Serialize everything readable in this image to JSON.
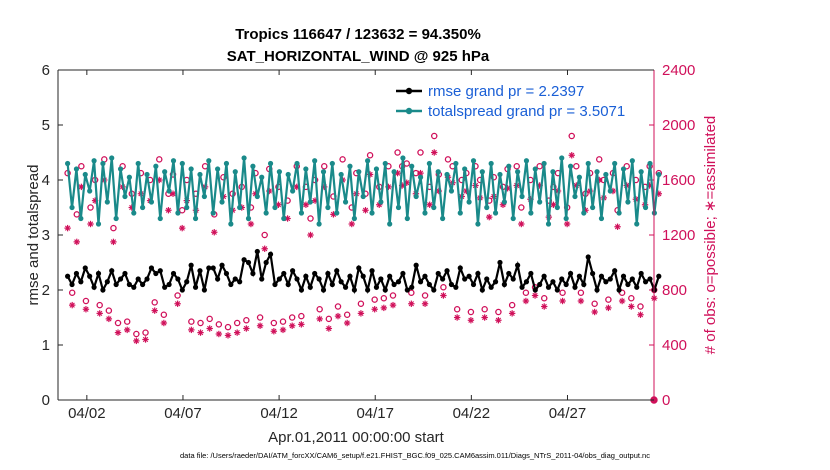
{
  "chart_data": {
    "type": "line",
    "title_line1": "Tropics 116647 / 123632 = 94.350%",
    "title_line2": "SAT_HORIZONTAL_WIND @ 925 hPa",
    "xlabel": "Apr.01,2011 00:00:00 start",
    "ylabel_left": "rmse and totalspread",
    "ylabel_right": "# of obs: o=possible; ∗=assimilated",
    "footnote": "data file: /Users/raeder/DAI/ATM_forcXX/CAM6_setup/f.e21.FHIST_BGC.f09_025.CAM6assim.011/Diags_NTrS_2011-04/obs_diag_output.nc",
    "xlim": [
      0.5,
      31.5
    ],
    "x_ticks": [
      2,
      7,
      12,
      17,
      22,
      27
    ],
    "x_tick_labels": [
      "04/02",
      "04/07",
      "04/12",
      "04/17",
      "04/22",
      "04/27"
    ],
    "ylim_left": [
      0,
      6
    ],
    "y_ticks_left": [
      0,
      1,
      2,
      3,
      4,
      5,
      6
    ],
    "ylim_right": [
      0,
      2400
    ],
    "y_ticks_right": [
      0,
      400,
      800,
      1200,
      1600,
      2000,
      2400
    ],
    "colors": {
      "rmse": "#000000",
      "spread": "#1a8a8a",
      "obs": "#d0105a",
      "legend_text": "#1a5fd6",
      "axis": "#262626"
    },
    "legend": {
      "rmse_label": "rmse grand pr = 2.2397",
      "spread_label": "totalspread grand pr = 3.5071"
    },
    "series": [
      {
        "name": "rmse",
        "axis": "left",
        "values": [
          2.25,
          2.1,
          2.3,
          2.15,
          2.4,
          2.25,
          2.05,
          2.3,
          2.0,
          2.15,
          2.35,
          2.1,
          2.2,
          2.3,
          2.1,
          2.05,
          2.2,
          2.1,
          2.2,
          2.4,
          2.3,
          2.35,
          2.05,
          2.1,
          2.3,
          2.2,
          2.0,
          2.15,
          2.45,
          2.05,
          2.35,
          2.0,
          2.4,
          2.4,
          2.2,
          2.45,
          2.3,
          2.1,
          2.2,
          2.15,
          2.55,
          2.5,
          2.3,
          2.7,
          2.2,
          2.5,
          2.65,
          2.1,
          2.2,
          2.3,
          2.1,
          2.35,
          2.2,
          2.0,
          2.25,
          2.05,
          2.3,
          2.2,
          2.0,
          2.3,
          2.1,
          2.35,
          2.15,
          2.05,
          2.25,
          2.0,
          2.4,
          2.25,
          2.0,
          2.35,
          2.05,
          2.2,
          2.0,
          2.25,
          2.1,
          2.15,
          2.3,
          2.0,
          2.05,
          2.45,
          2.15,
          2.25,
          2.1,
          2.0,
          2.3,
          2.2,
          2.35,
          2.1,
          2.05,
          2.4,
          2.2,
          2.25,
          2.1,
          2.3,
          2.0,
          2.2,
          2.05,
          2.15,
          2.5,
          2.1,
          2.3,
          2.2,
          2.45,
          2.05,
          2.15,
          2.3,
          2.0,
          2.1,
          2.25,
          2.05,
          2.15,
          2.0,
          2.2,
          2.1,
          2.3,
          2.05,
          2.25,
          2.1,
          2.6,
          2.3,
          2.0,
          2.25,
          2.15,
          2.2,
          2.35,
          2.0,
          2.25,
          2.1,
          2.2,
          2.05,
          2.3,
          2.15,
          2.2,
          2.0,
          2.25
        ]
      },
      {
        "name": "totalspread",
        "axis": "left",
        "values": [
          4.3,
          3.5,
          4.2,
          3.3,
          4.1,
          3.8,
          4.35,
          3.2,
          4.3,
          3.6,
          4.4,
          3.3,
          4.2,
          3.7,
          4.05,
          3.4,
          4.3,
          3.5,
          4.1,
          3.6,
          4.25,
          3.3,
          4.15,
          3.8,
          4.35,
          3.4,
          4.3,
          3.5,
          4.2,
          3.3,
          4.1,
          3.7,
          4.35,
          3.4,
          4.2,
          3.6,
          4.3,
          3.2,
          4.15,
          3.5,
          4.4,
          3.3,
          4.25,
          3.7,
          4.05,
          3.4,
          4.3,
          3.5,
          4.15,
          3.3,
          4.1,
          3.8,
          4.3,
          3.4,
          4.2,
          3.6,
          4.35,
          3.2,
          4.15,
          3.5,
          4.3,
          3.4,
          4.1,
          3.6,
          4.25,
          3.3,
          4.15,
          3.7,
          4.35,
          3.4,
          4.2,
          3.6,
          4.3,
          3.2,
          4.15,
          3.5,
          4.4,
          3.3,
          4.25,
          3.7,
          4.05,
          3.4,
          4.3,
          3.5,
          4.15,
          3.3,
          4.1,
          3.8,
          4.3,
          3.4,
          4.2,
          3.6,
          4.35,
          3.2,
          4.15,
          3.5,
          4.3,
          3.4,
          4.1,
          3.6,
          4.25,
          3.3,
          4.15,
          3.7,
          4.35,
          3.4,
          4.2,
          3.6,
          4.3,
          3.2,
          4.15,
          3.5,
          4.4,
          3.3,
          4.25,
          3.7,
          4.05,
          3.4,
          4.3,
          3.5,
          4.15,
          3.3,
          4.1,
          3.8,
          4.3,
          3.4,
          4.2,
          3.6,
          4.35,
          3.2,
          4.15,
          3.5,
          4.3,
          3.4,
          4.1
        ]
      },
      {
        "name": "possible",
        "axis": "right",
        "values": [
          1650,
          780,
          1350,
          1700,
          720,
          1400,
          1600,
          690,
          1750,
          650,
          1250,
          560,
          1700,
          570,
          1500,
          480,
          1650,
          490,
          1600,
          710,
          1750,
          620,
          1500,
          1640,
          760,
          1380,
          1600,
          570,
          1500,
          560,
          1700,
          590,
          1350,
          550,
          1620,
          530,
          1500,
          560,
          1550,
          580,
          1400,
          1650,
          600,
          1200,
          1680,
          560,
          1550,
          570,
          1450,
          600,
          1700,
          610,
          1550,
          1320,
          1600,
          660,
          1700,
          590,
          1480,
          680,
          1750,
          620,
          1400,
          1650,
          700,
          1500,
          1780,
          730,
          1550,
          740,
          1700,
          760,
          1800,
          1700,
          1720,
          780,
          1650,
          1800,
          760,
          1550,
          1920,
          1640,
          820,
          1750,
          1700,
          660,
          1600,
          1650,
          640,
          1700,
          1600,
          660,
          1450,
          1620,
          640,
          1550,
          1680,
          690,
          1700,
          1400,
          780,
          1600,
          820,
          1700,
          740,
          1450,
          1550,
          1650,
          780,
          1400,
          1920,
          1700,
          780,
          1500,
          1650,
          700,
          1750,
          1600,
          730,
          1650,
          1380,
          780,
          1700,
          740,
          1600,
          680,
          1550,
          1700,
          800,
          1650
        ]
      },
      {
        "name": "assimilated",
        "axis": "right",
        "values": [
          1250,
          690,
          1150,
          1550,
          660,
          1280,
          1450,
          630,
          1600,
          590,
          1150,
          490,
          1550,
          510,
          1400,
          430,
          1500,
          440,
          1450,
          650,
          1600,
          560,
          1380,
          1500,
          700,
          1250,
          1450,
          510,
          1380,
          490,
          1550,
          520,
          1220,
          480,
          1480,
          470,
          1380,
          490,
          1400,
          520,
          1280,
          1500,
          540,
          1100,
          1520,
          500,
          1420,
          510,
          1320,
          540,
          1550,
          550,
          1420,
          1200,
          1450,
          590,
          1550,
          520,
          1350,
          610,
          1600,
          560,
          1280,
          1500,
          630,
          1380,
          1640,
          660,
          1420,
          670,
          1550,
          690,
          1650,
          1560,
          1580,
          700,
          1500,
          1650,
          700,
          1420,
          1800,
          1520,
          760,
          1620,
          1580,
          600,
          1480,
          1520,
          580,
          1560,
          1470,
          600,
          1330,
          1480,
          580,
          1420,
          1540,
          630,
          1560,
          1280,
          720,
          1460,
          760,
          1560,
          680,
          1330,
          1420,
          1520,
          720,
          1280,
          1780,
          1560,
          720,
          1380,
          1520,
          640,
          1600,
          1470,
          670,
          1520,
          1260,
          720,
          1560,
          680,
          1460,
          620,
          1420,
          1560,
          740,
          1500
        ]
      }
    ],
    "annotations": {
      "last_point_right_zero": 0
    }
  }
}
